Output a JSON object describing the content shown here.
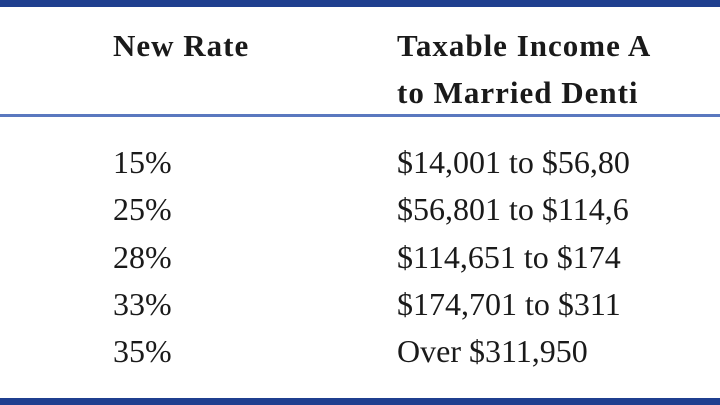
{
  "table": {
    "header": [
      "New Rate",
      [
        "Taxable Income A",
        "to Married Denti"
      ]
    ],
    "rows": [
      [
        "15%",
        "$14,001 to $56,80"
      ],
      [
        "25%",
        "$56,801 to $114,6"
      ],
      [
        "28%",
        "$114,651 to $174"
      ],
      [
        "33%",
        "$174,701 to $311"
      ],
      [
        "35%",
        "Over $311,950"
      ]
    ]
  }
}
